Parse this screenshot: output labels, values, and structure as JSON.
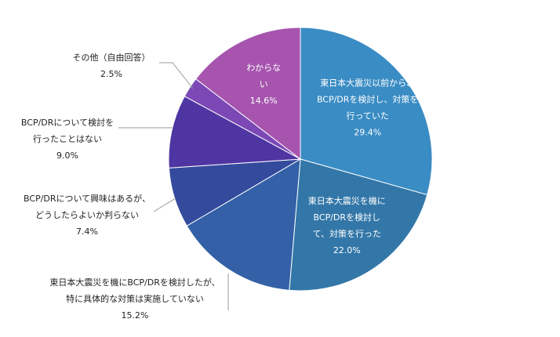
{
  "chart_data": {
    "type": "pie",
    "title": "",
    "start_angle_deg": 0,
    "direction": "clockwise",
    "slices": [
      {
        "label_lines": [
          "東日本大震災以前から、",
          "BCP/DRを検討し、対策を",
          "行っていた"
        ],
        "value": 29.4,
        "value_label": "29.4%",
        "color": "#3a8cc4",
        "label_position": "inside"
      },
      {
        "label_lines": [
          "東日本大震災を機に",
          "BCP/DRを検討し",
          "て、対策を行った"
        ],
        "value": 22.0,
        "value_label": "22.0%",
        "color": "#3377a8",
        "label_position": "inside"
      },
      {
        "label_lines": [
          "東日本大震災を機にBCP/DRを検討したが、",
          "特に具体的な対策は実施していない"
        ],
        "value": 15.2,
        "value_label": "15.2%",
        "color": "#3360a6",
        "label_position": "outside"
      },
      {
        "label_lines": [
          "BCP/DRについて興味はあるが、",
          "どうしたらよいか判らない"
        ],
        "value": 7.4,
        "value_label": "7.4%",
        "color": "#344a9c",
        "label_position": "outside"
      },
      {
        "label_lines": [
          "BCP/DRについて検討を",
          "行ったことはない"
        ],
        "value": 9.0,
        "value_label": "9.0%",
        "color": "#4f35a2",
        "label_position": "outside"
      },
      {
        "label_lines": [
          "その他（自由回答）"
        ],
        "value": 2.5,
        "value_label": "2.5%",
        "color": "#7b48b6",
        "label_position": "outside"
      },
      {
        "label_lines": [
          "わからな",
          "い"
        ],
        "value": 14.6,
        "value_label": "14.6%",
        "color": "#a654ae",
        "label_position": "inside"
      }
    ]
  }
}
